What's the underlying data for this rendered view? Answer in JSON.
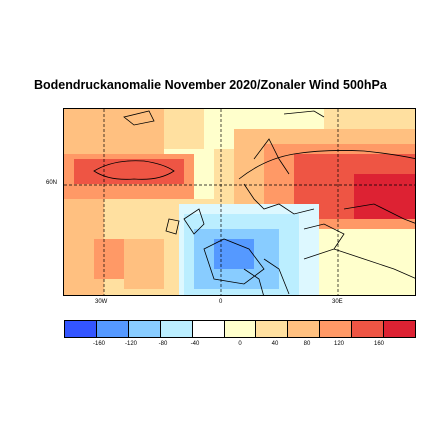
{
  "title": "Bodendruckanomalie November 2020/Zonaler Wind 500hPa",
  "map": {
    "lat_labels": [
      "60N"
    ],
    "lon_labels": [
      "30W",
      "0",
      "30E"
    ]
  },
  "legend": {
    "colors": [
      "#3355ff",
      "#5599ff",
      "#88ccff",
      "#bbeeff",
      "#ddf8ff",
      "#ffffff",
      "#ffffcc",
      "#ffe0a0",
      "#ffc080",
      "#ff9966",
      "#ee5544",
      "#dd2233"
    ],
    "labels": [
      "-160",
      "-120",
      "-80",
      "-40",
      "0",
      "40",
      "80",
      "120",
      "160"
    ]
  }
}
